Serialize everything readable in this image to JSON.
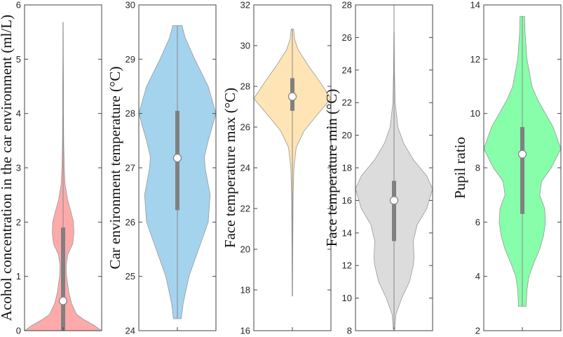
{
  "chart_data": [
    {
      "type": "violin",
      "ylabel": "Acohol concentration in the car environment (ml/L)",
      "ylim": [
        0,
        6
      ],
      "yticks": [
        0,
        1,
        2,
        3,
        4,
        5,
        6
      ],
      "color": "#ffaaaa",
      "density": [
        [
          0,
          1.0
        ],
        [
          0.1,
          0.8
        ],
        [
          0.2,
          0.55
        ],
        [
          0.3,
          0.35
        ],
        [
          0.5,
          0.22
        ],
        [
          0.7,
          0.15
        ],
        [
          1.0,
          0.09
        ],
        [
          1.2,
          0.08
        ],
        [
          1.4,
          0.12
        ],
        [
          1.6,
          0.25
        ],
        [
          1.8,
          0.28
        ],
        [
          2.0,
          0.27
        ],
        [
          2.2,
          0.2
        ],
        [
          2.4,
          0.12
        ],
        [
          2.7,
          0.05
        ],
        [
          3.0,
          0.03
        ],
        [
          3.5,
          0.015
        ],
        [
          4.0,
          0.01
        ],
        [
          4.5,
          0.01
        ],
        [
          5.0,
          0.006
        ],
        [
          5.68,
          0.003
        ]
      ],
      "whisker": [
        0,
        5.68
      ],
      "q1": 0,
      "q3": 1.9,
      "median": 0.55
    },
    {
      "type": "violin",
      "ylabel": "Car environment temperature (°C)",
      "ylim": [
        24,
        30
      ],
      "yticks": [
        24,
        25,
        26,
        27,
        28,
        29,
        30
      ],
      "color": "#a4d3ee",
      "density": [
        [
          24.22,
          0.1
        ],
        [
          24.5,
          0.15
        ],
        [
          25,
          0.3
        ],
        [
          25.5,
          0.55
        ],
        [
          26,
          0.8
        ],
        [
          26.5,
          0.85
        ],
        [
          27,
          0.72
        ],
        [
          27.2,
          0.7
        ],
        [
          27.5,
          0.8
        ],
        [
          28,
          1.0
        ],
        [
          28.5,
          0.8
        ],
        [
          29,
          0.45
        ],
        [
          29.4,
          0.2
        ],
        [
          29.62,
          0.12
        ]
      ],
      "whisker": [
        24.22,
        29.62
      ],
      "q1": 26.22,
      "q3": 28.05,
      "median": 27.18
    },
    {
      "type": "violin",
      "ylabel": "Face temperature max (°C)",
      "ylim": [
        16,
        32
      ],
      "yticks": [
        16,
        18,
        20,
        22,
        24,
        26,
        28,
        30,
        32
      ],
      "color": "#ffe4b5",
      "density": [
        [
          17.7,
          0.005
        ],
        [
          20,
          0.01
        ],
        [
          22.7,
          0.02
        ],
        [
          24,
          0.04
        ],
        [
          25,
          0.1
        ],
        [
          25.8,
          0.3
        ],
        [
          26.5,
          0.6
        ],
        [
          27.4,
          1.0
        ],
        [
          28.2,
          0.72
        ],
        [
          29,
          0.42
        ],
        [
          29.8,
          0.15
        ],
        [
          30.3,
          0.06
        ],
        [
          30.82,
          0.03
        ]
      ],
      "whisker": [
        17.7,
        30.82
      ],
      "q1": 26.8,
      "q3": 28.4,
      "median": 27.5
    },
    {
      "type": "violin",
      "ylabel": "Face temperature min (°C)",
      "ylim": [
        8,
        28
      ],
      "yticks": [
        8,
        10,
        12,
        14,
        16,
        18,
        20,
        22,
        24,
        26,
        28
      ],
      "color": "#dcdcdc",
      "density": [
        [
          8.1,
          0.02
        ],
        [
          9,
          0.05
        ],
        [
          10,
          0.2
        ],
        [
          11,
          0.4
        ],
        [
          12,
          0.5
        ],
        [
          12.5,
          0.52
        ],
        [
          13.5,
          0.5
        ],
        [
          14.5,
          0.6
        ],
        [
          15.5,
          0.85
        ],
        [
          16.7,
          1.0
        ],
        [
          17.5,
          0.85
        ],
        [
          18.5,
          0.5
        ],
        [
          19.5,
          0.25
        ],
        [
          20.5,
          0.1
        ],
        [
          22,
          0.03
        ],
        [
          24,
          0.012
        ],
        [
          26.3,
          0.005
        ]
      ],
      "whisker": [
        8.1,
        28
      ],
      "q1": 13.5,
      "q3": 17.2,
      "median": 16.0
    },
    {
      "type": "violin",
      "ylabel": "Pupil ratio",
      "ylim": [
        2,
        14
      ],
      "yticks": [
        2,
        4,
        6,
        8,
        10,
        12,
        14
      ],
      "color": "#87ffaa",
      "density": [
        [
          2.9,
          0.1
        ],
        [
          3.5,
          0.12
        ],
        [
          4,
          0.17
        ],
        [
          4.5,
          0.3
        ],
        [
          5,
          0.45
        ],
        [
          5.5,
          0.55
        ],
        [
          6,
          0.6
        ],
        [
          6.5,
          0.58
        ],
        [
          7,
          0.45
        ],
        [
          7.5,
          0.5
        ],
        [
          8,
          0.75
        ],
        [
          8.7,
          1.0
        ],
        [
          9.5,
          0.8
        ],
        [
          10,
          0.6
        ],
        [
          10.5,
          0.4
        ],
        [
          11,
          0.25
        ],
        [
          12,
          0.12
        ],
        [
          13,
          0.07
        ],
        [
          13.58,
          0.06
        ]
      ],
      "whisker": [
        2.9,
        13.58
      ],
      "q1": 6.3,
      "q3": 9.5,
      "median": 8.5
    }
  ]
}
